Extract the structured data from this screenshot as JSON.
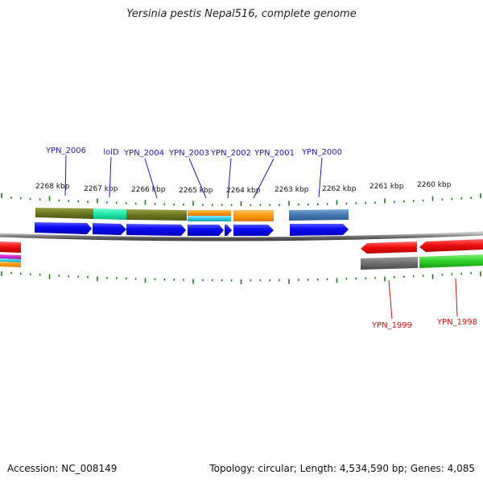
{
  "title": "Yersinia pestis Nepal516, complete genome",
  "footer": {
    "accession": "Accession: NC_008149",
    "summary": "Topology: circular; Length: 4,534,590 bp; Genes: 4,085"
  },
  "colors": {
    "top_label": "#1a1aa8",
    "bottom_label": "#cc1111",
    "tick": "#1d7a1d",
    "backbone": "#7a7a7a"
  },
  "scale_labels": [
    "2268 kbp",
    "2267 kbp",
    "2266 kbp",
    "2265 kbp",
    "2264 kbp",
    "2263 kbp",
    "2262 kbp",
    "2261 kbp",
    "2260 kbp"
  ],
  "gene_labels_top": [
    "YPN_2006",
    "lolD",
    "YPN_2004",
    "YPN_2003",
    "YPN_2002",
    "YPN_2001",
    "YPN_2000"
  ],
  "gene_labels_bottom": [
    "YPN_1999",
    "YPN_1998"
  ]
}
